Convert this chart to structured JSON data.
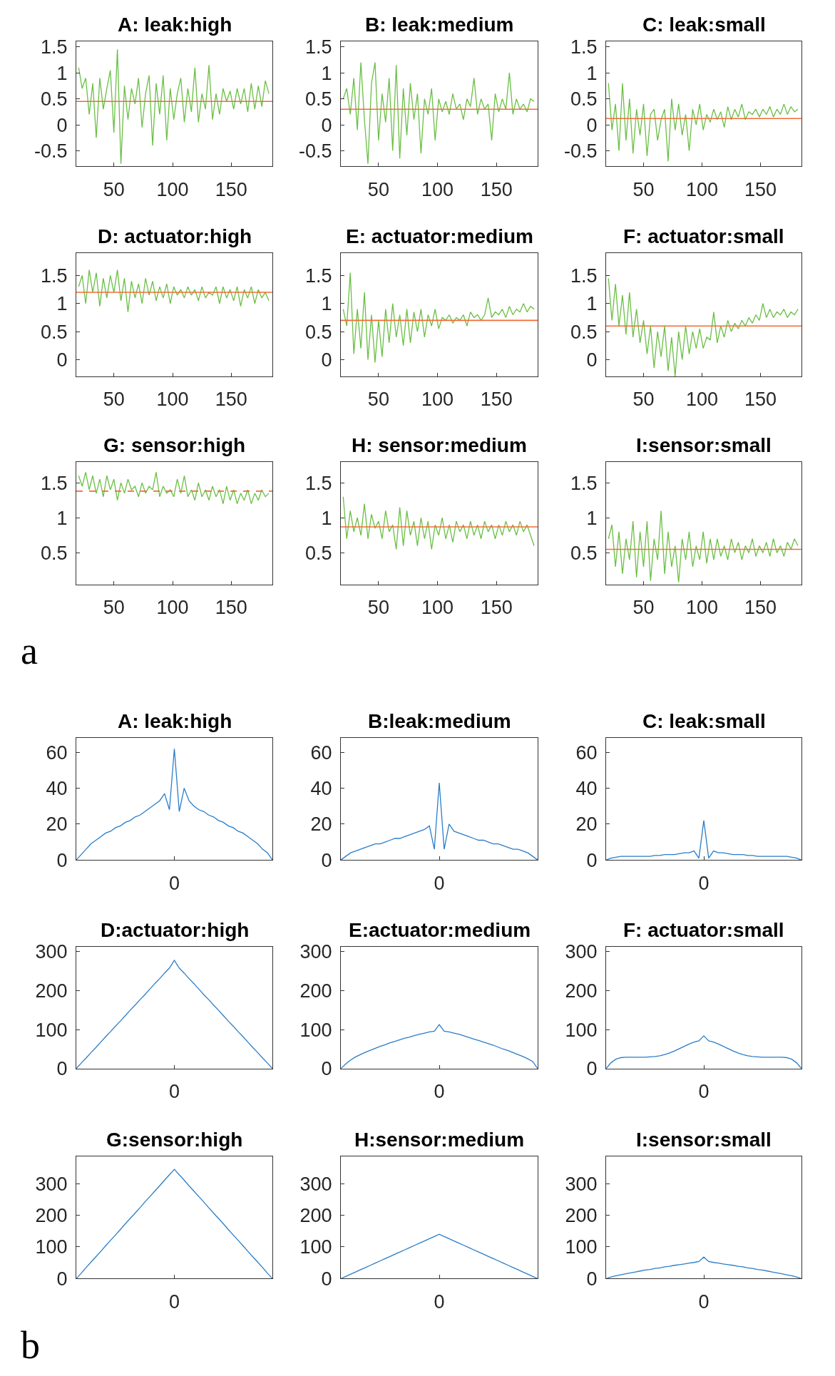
{
  "chart_data": [
    {
      "type": "line",
      "title": "A: leak:high",
      "x": [
        20,
        23,
        26,
        29,
        32,
        35,
        38,
        41,
        44,
        47,
        50,
        53,
        56,
        59,
        62,
        65,
        68,
        71,
        74,
        77,
        80,
        83,
        86,
        89,
        92,
        95,
        98,
        101,
        104,
        107,
        110,
        113,
        116,
        119,
        122,
        125,
        128,
        131,
        134,
        137,
        140,
        143,
        146,
        149,
        152,
        155,
        158,
        161,
        164,
        167,
        170,
        173,
        176,
        179,
        182
      ],
      "xlim": [
        18,
        185
      ],
      "xticks": [
        50,
        100,
        150
      ],
      "ylim": [
        -0.8,
        1.6
      ],
      "yticks": [
        -0.5,
        0,
        0.5,
        1,
        1.5
      ],
      "series": [
        {
          "color": "#6abf45",
          "values": [
            1.1,
            0.7,
            0.9,
            0.2,
            0.8,
            -0.25,
            0.9,
            0.3,
            0.7,
            1.05,
            -0.15,
            1.45,
            -0.75,
            0.75,
            0.1,
            0.7,
            0.4,
            0.9,
            -0.05,
            0.6,
            0.95,
            -0.4,
            0.8,
            0.2,
            0.95,
            -0.3,
            0.7,
            0.1,
            0.6,
            0.9,
            0.05,
            0.7,
            0.25,
            1.1,
            0.05,
            0.6,
            0.3,
            1.15,
            0.1,
            0.6,
            0.2,
            0.7,
            0.45,
            0.65,
            0.3,
            0.7,
            0.4,
            0.7,
            0.25,
            0.8,
            0.3,
            0.75,
            0.35,
            0.85,
            0.6
          ]
        }
      ],
      "ref_lines": [
        {
          "axis": "y",
          "value": 0.45,
          "color": "#f26b35"
        }
      ]
    },
    {
      "type": "line",
      "title": "B: leak:medium",
      "x": [
        20,
        23,
        26,
        29,
        32,
        35,
        38,
        41,
        44,
        47,
        50,
        53,
        56,
        59,
        62,
        65,
        68,
        71,
        74,
        77,
        80,
        83,
        86,
        89,
        92,
        95,
        98,
        101,
        104,
        107,
        110,
        113,
        116,
        119,
        122,
        125,
        128,
        131,
        134,
        137,
        140,
        143,
        146,
        149,
        152,
        155,
        158,
        161,
        164,
        167,
        170,
        173,
        176,
        179,
        182
      ],
      "xlim": [
        18,
        185
      ],
      "xticks": [
        50,
        100,
        150
      ],
      "ylim": [
        -0.8,
        1.6
      ],
      "yticks": [
        -0.5,
        0,
        0.5,
        1,
        1.5
      ],
      "series": [
        {
          "color": "#6abf45",
          "values": [
            0.5,
            0.7,
            0.2,
            0.9,
            -0.1,
            1.2,
            0.1,
            -0.75,
            0.8,
            1.2,
            -0.3,
            0.6,
            0.05,
            0.9,
            -0.5,
            1.15,
            -0.65,
            0.7,
            -0.2,
            0.8,
            0.1,
            0.6,
            -0.55,
            0.5,
            0.2,
            0.7,
            -0.3,
            0.5,
            0.25,
            0.45,
            0.2,
            0.6,
            0.3,
            0.4,
            0.1,
            0.5,
            0.35,
            0.9,
            0.2,
            0.5,
            0.3,
            0.4,
            -0.3,
            0.6,
            0.25,
            0.5,
            0.3,
            1.0,
            0.2,
            0.5,
            0.3,
            0.4,
            0.25,
            0.5,
            0.45
          ]
        }
      ],
      "ref_lines": [
        {
          "axis": "y",
          "value": 0.3,
          "color": "#f26b35"
        }
      ]
    },
    {
      "type": "line",
      "title": "C: leak:small",
      "x": [
        20,
        23,
        26,
        29,
        32,
        35,
        38,
        41,
        44,
        47,
        50,
        53,
        56,
        59,
        62,
        65,
        68,
        71,
        74,
        77,
        80,
        83,
        86,
        89,
        92,
        95,
        98,
        101,
        104,
        107,
        110,
        113,
        116,
        119,
        122,
        125,
        128,
        131,
        134,
        137,
        140,
        143,
        146,
        149,
        152,
        155,
        158,
        161,
        164,
        167,
        170,
        173,
        176,
        179,
        182
      ],
      "xlim": [
        18,
        185
      ],
      "xticks": [
        50,
        100,
        150
      ],
      "ylim": [
        -0.8,
        1.6
      ],
      "yticks": [
        -0.5,
        0,
        0.5,
        1,
        1.5
      ],
      "series": [
        {
          "color": "#6abf45",
          "values": [
            0.8,
            -0.1,
            0.4,
            -0.5,
            0.8,
            -0.3,
            0.5,
            -0.55,
            0.3,
            -0.2,
            0.4,
            -0.6,
            0.2,
            0.3,
            -0.3,
            0.1,
            0.3,
            -0.7,
            0.5,
            -0.1,
            0.4,
            -0.2,
            0.2,
            -0.5,
            0.3,
            0.0,
            0.4,
            -0.1,
            0.2,
            0.05,
            0.3,
            0.1,
            0.25,
            -0.05,
            0.35,
            0.1,
            0.3,
            0.15,
            0.4,
            0.1,
            0.25,
            0.2,
            0.3,
            0.15,
            0.3,
            0.2,
            0.35,
            0.15,
            0.3,
            0.2,
            0.4,
            0.2,
            0.35,
            0.25,
            0.3
          ]
        }
      ],
      "ref_lines": [
        {
          "axis": "y",
          "value": 0.12,
          "color": "#f26b35"
        }
      ]
    },
    {
      "type": "line",
      "title": "D: actuator:high",
      "x": [
        20,
        23,
        26,
        29,
        32,
        35,
        38,
        41,
        44,
        47,
        50,
        53,
        56,
        59,
        62,
        65,
        68,
        71,
        74,
        77,
        80,
        83,
        86,
        89,
        92,
        95,
        98,
        101,
        104,
        107,
        110,
        113,
        116,
        119,
        122,
        125,
        128,
        131,
        134,
        137,
        140,
        143,
        146,
        149,
        152,
        155,
        158,
        161,
        164,
        167,
        170,
        173,
        176,
        179,
        182
      ],
      "xlim": [
        18,
        185
      ],
      "xticks": [
        50,
        100,
        150
      ],
      "ylim": [
        -0.3,
        1.9
      ],
      "yticks": [
        0,
        0.5,
        1,
        1.5
      ],
      "series": [
        {
          "color": "#6abf45",
          "values": [
            1.3,
            1.5,
            1.0,
            1.6,
            1.2,
            1.55,
            0.95,
            1.45,
            1.1,
            1.5,
            1.2,
            1.6,
            1.05,
            1.45,
            0.85,
            1.4,
            1.1,
            1.35,
            1.0,
            1.45,
            1.15,
            1.4,
            1.05,
            1.3,
            1.1,
            1.35,
            1.0,
            1.3,
            1.15,
            1.25,
            1.1,
            1.3,
            1.15,
            1.25,
            1.05,
            1.3,
            1.1,
            1.2,
            1.15,
            1.3,
            1.0,
            1.3,
            1.1,
            1.25,
            1.05,
            1.3,
            0.95,
            1.25,
            1.1,
            1.3,
            1.0,
            1.25,
            1.1,
            1.2,
            1.05
          ]
        }
      ],
      "ref_lines": [
        {
          "axis": "y",
          "value": 1.2,
          "color": "#f26b35"
        }
      ]
    },
    {
      "type": "line",
      "title": "E: actuator:medium",
      "x": [
        20,
        23,
        26,
        29,
        32,
        35,
        38,
        41,
        44,
        47,
        50,
        53,
        56,
        59,
        62,
        65,
        68,
        71,
        74,
        77,
        80,
        83,
        86,
        89,
        92,
        95,
        98,
        101,
        104,
        107,
        110,
        113,
        116,
        119,
        122,
        125,
        128,
        131,
        134,
        137,
        140,
        143,
        146,
        149,
        152,
        155,
        158,
        161,
        164,
        167,
        170,
        173,
        176,
        179,
        182
      ],
      "xlim": [
        18,
        185
      ],
      "xticks": [
        50,
        100,
        150
      ],
      "ylim": [
        -0.3,
        1.9
      ],
      "yticks": [
        0,
        0.5,
        1,
        1.5
      ],
      "series": [
        {
          "color": "#6abf45",
          "values": [
            0.9,
            0.6,
            1.55,
            0.1,
            0.9,
            0.2,
            1.2,
            0.0,
            0.8,
            -0.05,
            0.7,
            0.05,
            0.9,
            0.3,
            1.0,
            0.4,
            0.8,
            0.25,
            0.9,
            0.3,
            0.85,
            0.5,
            0.9,
            0.4,
            0.8,
            0.6,
            0.9,
            0.55,
            0.75,
            0.7,
            0.8,
            0.65,
            0.75,
            0.7,
            0.8,
            0.6,
            0.85,
            0.75,
            0.8,
            0.7,
            0.8,
            1.1,
            0.75,
            0.85,
            0.8,
            0.9,
            0.75,
            0.95,
            0.8,
            0.9,
            0.85,
            1.0,
            0.85,
            0.95,
            0.9
          ]
        }
      ],
      "ref_lines": [
        {
          "axis": "y",
          "value": 0.7,
          "color": "#f26b35"
        }
      ]
    },
    {
      "type": "line",
      "title": "F: actuator:small",
      "x": [
        20,
        23,
        26,
        29,
        32,
        35,
        38,
        41,
        44,
        47,
        50,
        53,
        56,
        59,
        62,
        65,
        68,
        71,
        74,
        77,
        80,
        83,
        86,
        89,
        92,
        95,
        98,
        101,
        104,
        107,
        110,
        113,
        116,
        119,
        122,
        125,
        128,
        131,
        134,
        137,
        140,
        143,
        146,
        149,
        152,
        155,
        158,
        161,
        164,
        167,
        170,
        173,
        176,
        179,
        182
      ],
      "xlim": [
        18,
        185
      ],
      "xticks": [
        50,
        100,
        150
      ],
      "ylim": [
        -0.3,
        1.9
      ],
      "yticks": [
        0,
        0.5,
        1,
        1.5
      ],
      "series": [
        {
          "color": "#6abf45",
          "values": [
            1.45,
            0.7,
            1.35,
            0.6,
            1.15,
            0.45,
            1.2,
            0.4,
            0.9,
            0.3,
            0.7,
            0.1,
            0.6,
            -0.15,
            0.5,
            0.05,
            0.6,
            -0.2,
            0.4,
            -0.3,
            0.5,
            0.0,
            0.6,
            0.1,
            0.5,
            0.2,
            0.55,
            0.2,
            0.4,
            0.35,
            0.85,
            0.3,
            0.6,
            0.4,
            0.7,
            0.5,
            0.65,
            0.55,
            0.7,
            0.6,
            0.75,
            0.65,
            0.8,
            0.7,
            1.0,
            0.75,
            0.9,
            0.75,
            0.85,
            0.8,
            0.9,
            0.75,
            0.85,
            0.8,
            0.9
          ]
        }
      ],
      "ref_lines": [
        {
          "axis": "y",
          "value": 0.6,
          "color": "#f26b35"
        }
      ]
    },
    {
      "type": "line",
      "title": "G: sensor:high",
      "x": [
        20,
        23,
        26,
        29,
        32,
        35,
        38,
        41,
        44,
        47,
        50,
        53,
        56,
        59,
        62,
        65,
        68,
        71,
        74,
        77,
        80,
        83,
        86,
        89,
        92,
        95,
        98,
        101,
        104,
        107,
        110,
        113,
        116,
        119,
        122,
        125,
        128,
        131,
        134,
        137,
        140,
        143,
        146,
        149,
        152,
        155,
        158,
        161,
        164,
        167,
        170,
        173,
        176,
        179,
        182
      ],
      "xlim": [
        18,
        185
      ],
      "xticks": [
        50,
        100,
        150
      ],
      "ylim": [
        0.05,
        1.8
      ],
      "yticks": [
        0.5,
        1,
        1.5
      ],
      "series": [
        {
          "color": "#6abf45",
          "values": [
            1.6,
            1.45,
            1.65,
            1.4,
            1.6,
            1.35,
            1.55,
            1.3,
            1.6,
            1.4,
            1.55,
            1.25,
            1.5,
            1.35,
            1.55,
            1.4,
            1.45,
            1.3,
            1.5,
            1.35,
            1.45,
            1.4,
            1.65,
            1.3,
            1.45,
            1.35,
            1.4,
            1.3,
            1.55,
            1.35,
            1.6,
            1.3,
            1.4,
            1.25,
            1.5,
            1.3,
            1.4,
            1.25,
            1.45,
            1.3,
            1.4,
            1.2,
            1.45,
            1.25,
            1.4,
            1.2,
            1.35,
            1.25,
            1.4,
            1.2,
            1.35,
            1.25,
            1.4,
            1.3,
            1.35
          ]
        }
      ],
      "ref_lines": [
        {
          "axis": "y",
          "value": 1.38,
          "color": "#f26b35",
          "line_style": "dashed"
        }
      ],
      "annotations": [
        "a"
      ]
    },
    {
      "type": "line",
      "title": "H: sensor:medium",
      "x": [
        20,
        23,
        26,
        29,
        32,
        35,
        38,
        41,
        44,
        47,
        50,
        53,
        56,
        59,
        62,
        65,
        68,
        71,
        74,
        77,
        80,
        83,
        86,
        89,
        92,
        95,
        98,
        101,
        104,
        107,
        110,
        113,
        116,
        119,
        122,
        125,
        128,
        131,
        134,
        137,
        140,
        143,
        146,
        149,
        152,
        155,
        158,
        161,
        164,
        167,
        170,
        173,
        176,
        179,
        182
      ],
      "xlim": [
        18,
        185
      ],
      "xticks": [
        50,
        100,
        150
      ],
      "ylim": [
        0.05,
        1.8
      ],
      "yticks": [
        0.5,
        1,
        1.5
      ],
      "series": [
        {
          "color": "#6abf45",
          "values": [
            1.3,
            0.7,
            1.1,
            0.8,
            1.0,
            0.75,
            1.2,
            0.7,
            1.05,
            0.85,
            0.95,
            0.7,
            1.1,
            0.8,
            0.9,
            0.55,
            1.15,
            0.6,
            1.1,
            0.75,
            0.95,
            0.6,
            1.0,
            0.7,
            0.95,
            0.55,
            0.9,
            0.75,
            1.0,
            0.7,
            0.9,
            0.65,
            0.95,
            0.8,
            0.9,
            0.7,
            0.95,
            0.75,
            0.9,
            0.7,
            0.95,
            0.8,
            0.9,
            0.7,
            0.9,
            0.75,
            0.95,
            0.8,
            0.9,
            0.75,
            0.95,
            0.8,
            0.9,
            0.75,
            0.6
          ]
        }
      ],
      "ref_lines": [
        {
          "axis": "y",
          "value": 0.87,
          "color": "#f26b35"
        }
      ]
    },
    {
      "type": "line",
      "title": "I:sensor:small",
      "x": [
        20,
        23,
        26,
        29,
        32,
        35,
        38,
        41,
        44,
        47,
        50,
        53,
        56,
        59,
        62,
        65,
        68,
        71,
        74,
        77,
        80,
        83,
        86,
        89,
        92,
        95,
        98,
        101,
        104,
        107,
        110,
        113,
        116,
        119,
        122,
        125,
        128,
        131,
        134,
        137,
        140,
        143,
        146,
        149,
        152,
        155,
        158,
        161,
        164,
        167,
        170,
        173,
        176,
        179,
        182
      ],
      "xlim": [
        18,
        185
      ],
      "xticks": [
        50,
        100,
        150
      ],
      "ylim": [
        0.05,
        1.8
      ],
      "yticks": [
        0.5,
        1,
        1.5
      ],
      "series": [
        {
          "color": "#6abf45",
          "values": [
            0.7,
            0.9,
            0.3,
            0.8,
            0.2,
            0.7,
            0.4,
            0.95,
            0.15,
            0.8,
            0.3,
            0.95,
            0.1,
            0.7,
            0.4,
            1.1,
            0.2,
            0.8,
            0.3,
            0.6,
            0.08,
            0.7,
            0.4,
            0.8,
            0.3,
            0.6,
            0.4,
            0.8,
            0.35,
            0.7,
            0.4,
            0.7,
            0.45,
            0.6,
            0.4,
            0.7,
            0.5,
            0.65,
            0.4,
            0.6,
            0.5,
            0.7,
            0.45,
            0.6,
            0.5,
            0.65,
            0.45,
            0.7,
            0.5,
            0.6,
            0.45,
            0.65,
            0.55,
            0.7,
            0.6
          ]
        }
      ],
      "ref_lines": [
        {
          "axis": "y",
          "value": 0.55,
          "color": "#f26b35"
        }
      ]
    },
    {
      "type": "line",
      "title": "A: leak:high",
      "categories": [
        null,
        null,
        null,
        null,
        null,
        null,
        null,
        null,
        null,
        null,
        null,
        null,
        null,
        null,
        null,
        null,
        null,
        null,
        null,
        null,
        "0",
        null,
        null,
        null,
        null,
        null,
        null,
        null,
        null,
        null,
        null,
        null,
        null,
        null,
        null,
        null,
        null,
        null,
        null,
        null,
        null
      ],
      "ylim": [
        0,
        68
      ],
      "yticks": [
        0,
        20,
        40,
        60
      ],
      "series": [
        {
          "color": "#2a7dc8",
          "values": [
            0,
            3,
            6,
            9,
            11,
            13,
            15,
            16,
            18,
            19,
            21,
            22,
            24,
            25,
            27,
            29,
            31,
            33,
            37,
            28,
            62,
            27,
            40,
            33,
            30,
            28,
            27,
            25,
            24,
            22,
            21,
            19,
            18,
            16,
            15,
            13,
            11,
            9,
            6,
            4,
            0
          ]
        }
      ]
    },
    {
      "type": "line",
      "title": "B:leak:medium",
      "categories": [
        null,
        null,
        null,
        null,
        null,
        null,
        null,
        null,
        null,
        null,
        null,
        null,
        null,
        null,
        null,
        null,
        null,
        null,
        null,
        null,
        "0",
        null,
        null,
        null,
        null,
        null,
        null,
        null,
        null,
        null,
        null,
        null,
        null,
        null,
        null,
        null,
        null,
        null,
        null,
        null,
        null
      ],
      "ylim": [
        0,
        68
      ],
      "yticks": [
        0,
        20,
        40,
        60
      ],
      "series": [
        {
          "color": "#2a7dc8",
          "values": [
            0,
            2,
            4,
            5,
            6,
            7,
            8,
            9,
            9,
            10,
            11,
            12,
            12,
            13,
            14,
            15,
            16,
            17,
            19,
            6,
            43,
            6,
            20,
            16,
            15,
            14,
            13,
            12,
            11,
            11,
            10,
            9,
            9,
            8,
            7,
            6,
            6,
            5,
            4,
            2,
            0
          ]
        }
      ]
    },
    {
      "type": "line",
      "title": "C: leak:small",
      "categories": [
        null,
        null,
        null,
        null,
        null,
        null,
        null,
        null,
        null,
        null,
        null,
        null,
        null,
        null,
        null,
        null,
        null,
        null,
        null,
        null,
        "0",
        null,
        null,
        null,
        null,
        null,
        null,
        null,
        null,
        null,
        null,
        null,
        null,
        null,
        null,
        null,
        null,
        null,
        null,
        null,
        null
      ],
      "ylim": [
        0,
        68
      ],
      "yticks": [
        0,
        20,
        40,
        60
      ],
      "series": [
        {
          "color": "#2a7dc8",
          "values": [
            0,
            1,
            1.5,
            2,
            2,
            2,
            2,
            2,
            2,
            2,
            2.5,
            2.5,
            3,
            3,
            3,
            3.5,
            4,
            4,
            5,
            1,
            22,
            1,
            5,
            4,
            4,
            3.5,
            3,
            3,
            3,
            2.5,
            2.5,
            2,
            2,
            2,
            2,
            2,
            2,
            2,
            1.5,
            1,
            0
          ]
        }
      ]
    },
    {
      "type": "line",
      "title": "D:actuator:high",
      "categories": [
        null,
        null,
        null,
        null,
        null,
        null,
        null,
        null,
        null,
        null,
        null,
        null,
        null,
        null,
        null,
        null,
        null,
        null,
        null,
        null,
        "0",
        null,
        null,
        null,
        null,
        null,
        null,
        null,
        null,
        null,
        null,
        null,
        null,
        null,
        null,
        null,
        null,
        null,
        null,
        null,
        null
      ],
      "ylim": [
        0,
        313
      ],
      "yticks": [
        0,
        100,
        200,
        300
      ],
      "series": [
        {
          "color": "#2a7dc8",
          "values": [
            0,
            14,
            27,
            41,
            54,
            68,
            82,
            95,
            109,
            122,
            136,
            150,
            163,
            177,
            190,
            204,
            218,
            231,
            245,
            258,
            278,
            258,
            245,
            231,
            218,
            204,
            190,
            177,
            163,
            150,
            136,
            122,
            109,
            95,
            82,
            68,
            54,
            41,
            27,
            14,
            0
          ]
        }
      ]
    },
    {
      "type": "line",
      "title": "E:actuator:medium",
      "categories": [
        null,
        null,
        null,
        null,
        null,
        null,
        null,
        null,
        null,
        null,
        null,
        null,
        null,
        null,
        null,
        null,
        null,
        null,
        null,
        null,
        "0",
        null,
        null,
        null,
        null,
        null,
        null,
        null,
        null,
        null,
        null,
        null,
        null,
        null,
        null,
        null,
        null,
        null,
        null,
        null,
        null
      ],
      "ylim": [
        0,
        313
      ],
      "yticks": [
        0,
        100,
        200,
        300
      ],
      "series": [
        {
          "color": "#2a7dc8",
          "values": [
            0,
            12,
            22,
            30,
            36,
            42,
            47,
            52,
            57,
            61,
            66,
            70,
            74,
            78,
            81,
            85,
            88,
            91,
            94,
            96,
            113,
            96,
            94,
            91,
            88,
            84,
            80,
            76,
            72,
            68,
            64,
            60,
            55,
            50,
            46,
            41,
            36,
            31,
            25,
            18,
            0
          ]
        }
      ]
    },
    {
      "type": "line",
      "title": "F: actuator:small",
      "categories": [
        null,
        null,
        null,
        null,
        null,
        null,
        null,
        null,
        null,
        null,
        null,
        null,
        null,
        null,
        null,
        null,
        null,
        null,
        null,
        null,
        "0",
        null,
        null,
        null,
        null,
        null,
        null,
        null,
        null,
        null,
        null,
        null,
        null,
        null,
        null,
        null,
        null,
        null,
        null,
        null,
        null
      ],
      "ylim": [
        0,
        313
      ],
      "yticks": [
        0,
        100,
        200,
        300
      ],
      "series": [
        {
          "color": "#2a7dc8",
          "values": [
            0,
            15,
            24,
            28,
            29,
            29,
            29,
            29,
            29,
            30,
            31,
            33,
            36,
            40,
            45,
            51,
            57,
            63,
            68,
            71,
            84,
            71,
            68,
            63,
            57,
            51,
            45,
            40,
            36,
            33,
            31,
            30,
            29,
            29,
            29,
            29,
            29,
            28,
            24,
            15,
            0
          ]
        }
      ]
    },
    {
      "type": "line",
      "title": "G:sensor:high",
      "categories": [
        null,
        null,
        null,
        null,
        null,
        null,
        null,
        null,
        null,
        null,
        null,
        null,
        null,
        null,
        null,
        null,
        null,
        null,
        null,
        null,
        "0",
        null,
        null,
        null,
        null,
        null,
        null,
        null,
        null,
        null,
        null,
        null,
        null,
        null,
        null,
        null,
        null,
        null,
        null,
        null,
        null
      ],
      "ylim": [
        0,
        385
      ],
      "yticks": [
        0,
        100,
        200,
        300
      ],
      "series": [
        {
          "color": "#2a7dc8",
          "values": [
            0,
            17,
            35,
            52,
            69,
            86,
            104,
            121,
            138,
            155,
            173,
            190,
            207,
            224,
            242,
            259,
            276,
            293,
            311,
            328,
            345,
            328,
            311,
            293,
            276,
            259,
            242,
            224,
            207,
            190,
            173,
            155,
            138,
            121,
            104,
            86,
            69,
            52,
            35,
            17,
            0
          ]
        }
      ],
      "annotations": [
        "b"
      ]
    },
    {
      "type": "line",
      "title": "H:sensor:medium",
      "categories": [
        null,
        null,
        null,
        null,
        null,
        null,
        null,
        null,
        null,
        null,
        null,
        null,
        null,
        null,
        null,
        null,
        null,
        null,
        null,
        null,
        "0",
        null,
        null,
        null,
        null,
        null,
        null,
        null,
        null,
        null,
        null,
        null,
        null,
        null,
        null,
        null,
        null,
        null,
        null,
        null,
        null
      ],
      "ylim": [
        0,
        385
      ],
      "yticks": [
        0,
        100,
        200,
        300
      ],
      "series": [
        {
          "color": "#2a7dc8",
          "values": [
            0,
            7,
            14,
            21,
            28,
            35,
            42,
            49,
            56,
            63,
            70,
            77,
            84,
            91,
            98,
            105,
            112,
            119,
            126,
            133,
            140,
            133,
            126,
            119,
            112,
            105,
            98,
            91,
            84,
            77,
            70,
            63,
            56,
            49,
            42,
            35,
            28,
            21,
            14,
            7,
            0
          ]
        }
      ]
    },
    {
      "type": "line",
      "title": "I:sensor:small",
      "categories": [
        null,
        null,
        null,
        null,
        null,
        null,
        null,
        null,
        null,
        null,
        null,
        null,
        null,
        null,
        null,
        null,
        null,
        null,
        null,
        null,
        "0",
        null,
        null,
        null,
        null,
        null,
        null,
        null,
        null,
        null,
        null,
        null,
        null,
        null,
        null,
        null,
        null,
        null,
        null,
        null,
        null
      ],
      "ylim": [
        0,
        385
      ],
      "yticks": [
        0,
        100,
        200,
        300
      ],
      "series": [
        {
          "color": "#2a7dc8",
          "values": [
            0,
            5,
            9,
            12,
            15,
            18,
            21,
            24,
            27,
            29,
            32,
            34,
            37,
            39,
            42,
            44,
            46,
            49,
            51,
            54,
            68,
            54,
            51,
            49,
            46,
            44,
            42,
            39,
            37,
            34,
            32,
            29,
            27,
            24,
            21,
            18,
            15,
            12,
            9,
            5,
            0
          ]
        }
      ]
    }
  ]
}
